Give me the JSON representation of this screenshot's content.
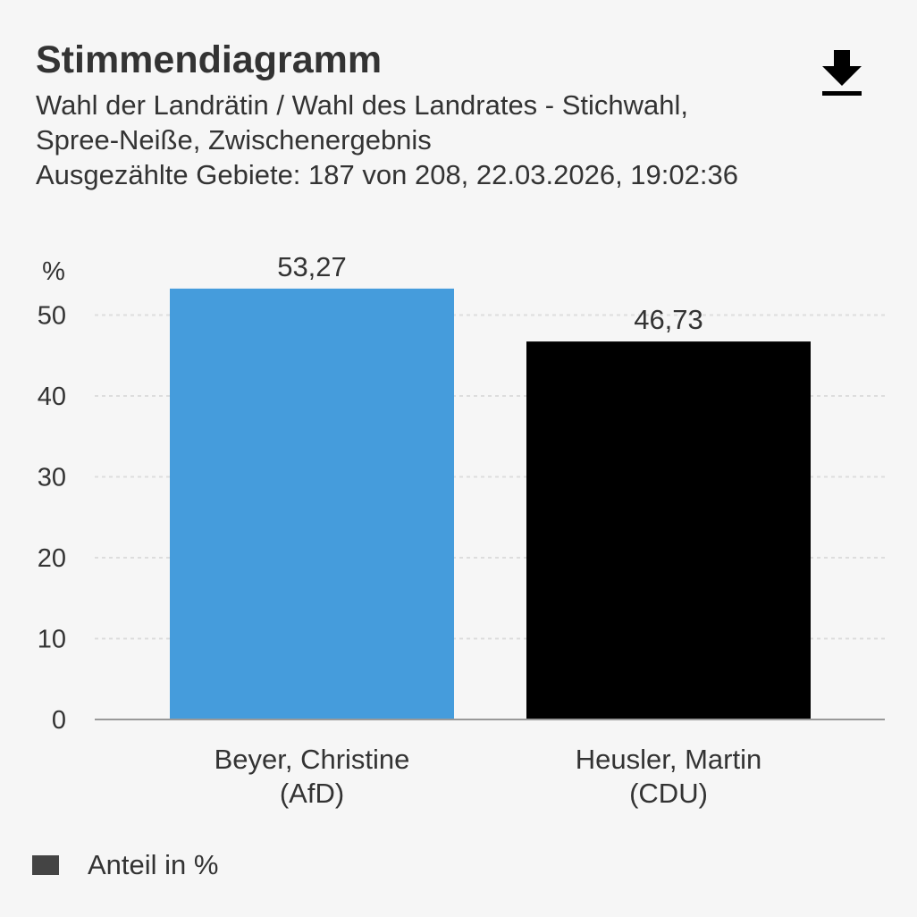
{
  "header": {
    "title": "Stimmendiagramm",
    "subtitle_lines": [
      "Wahl der Landrätin / Wahl des Landrates - Stichwahl,",
      "Spree-Neiße, Zwischenergebnis",
      "Ausgezählte Gebiete: 187 von 208, 22.03.2026, 19:02:36"
    ]
  },
  "icons": {
    "download": "download-icon"
  },
  "colors": {
    "background": "#f6f6f6",
    "afd": "#459cdc",
    "cdu": "#000000",
    "legend": "#444444",
    "grid": "#dddddd",
    "axis": "#999999",
    "text": "#333333"
  },
  "chart_data": {
    "type": "bar",
    "categories": [
      [
        "Beyer, Christine",
        "(AfD)"
      ],
      [
        "Heusler, Martin",
        "(CDU)"
      ]
    ],
    "series": [
      {
        "name": "Anteil in %",
        "values": [
          53.27,
          46.73
        ],
        "labels": [
          "53,27",
          "46,73"
        ],
        "colors": [
          "#459cdc",
          "#000000"
        ]
      }
    ],
    "yunit": "%",
    "yticks": [
      0,
      10,
      20,
      30,
      40,
      50
    ],
    "ylim": [
      0,
      53.27
    ],
    "grid": true,
    "legend": "bottom-left"
  },
  "legend": {
    "label": "Anteil in %"
  }
}
